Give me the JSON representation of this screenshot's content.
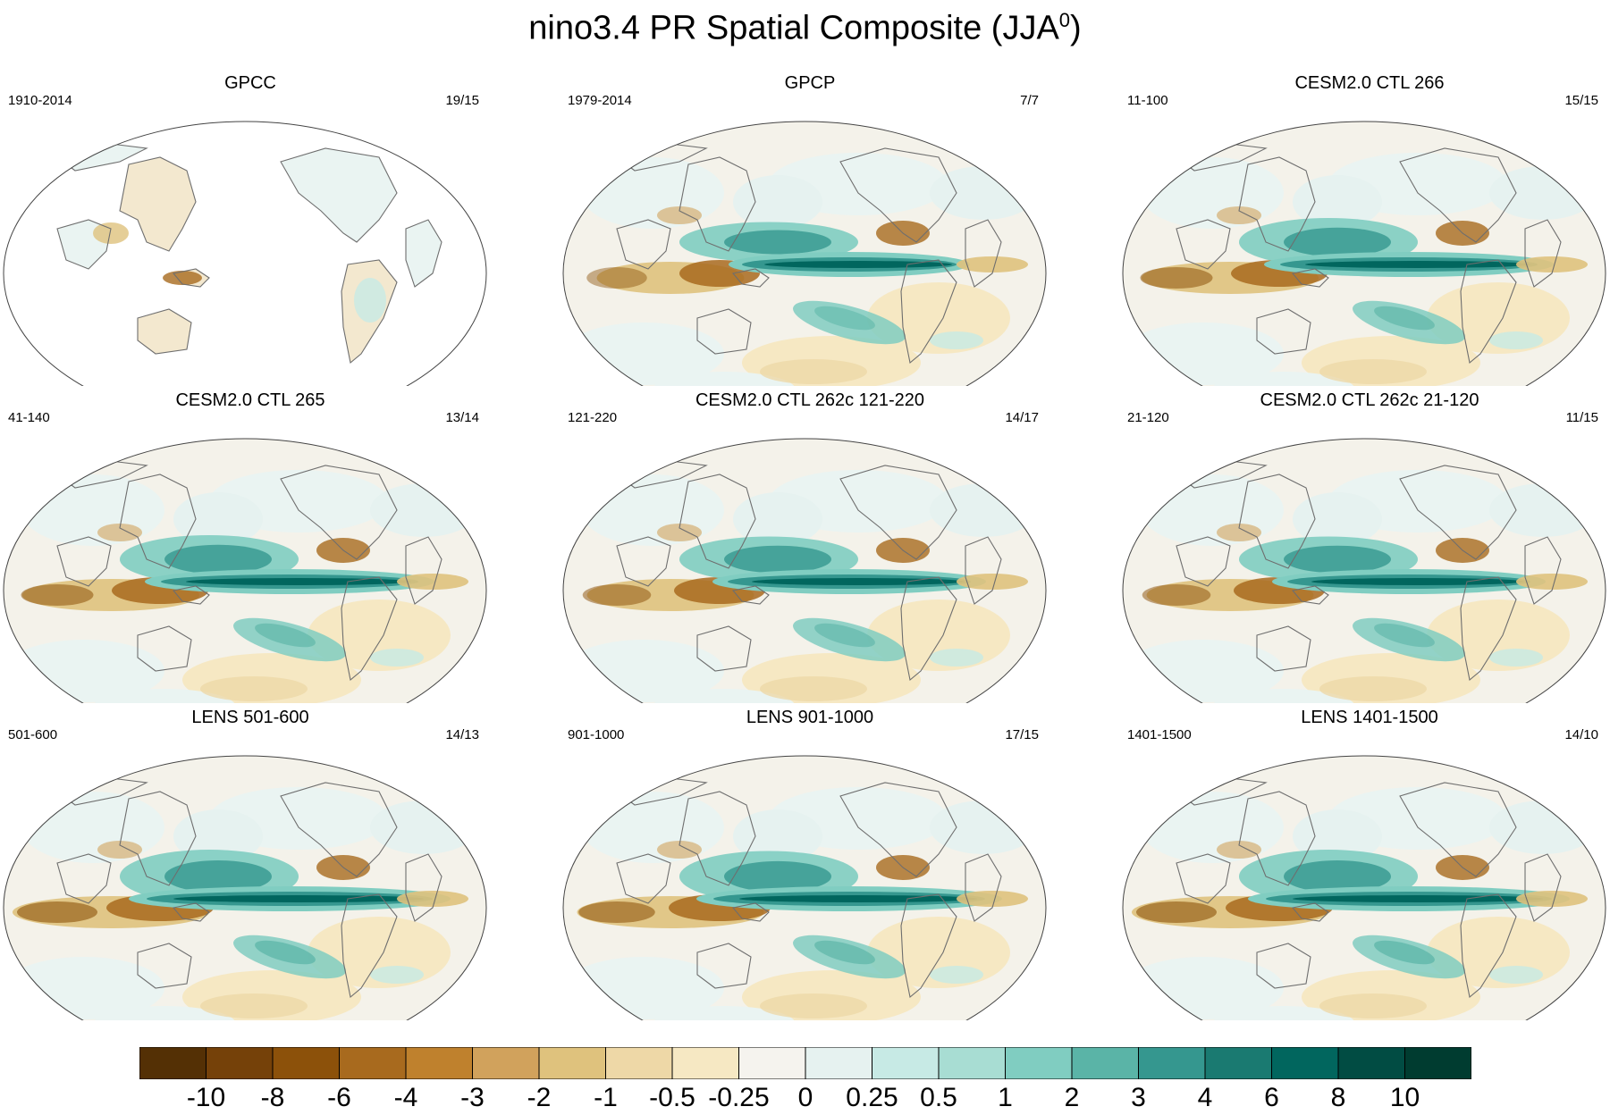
{
  "title_main": "nino3.4 PR Spatial Composite (JJA",
  "title_sup": "0",
  "title_close": ")",
  "panels": [
    {
      "title": "GPCC",
      "left": "1910-2014",
      "right": "19/15",
      "observed_land_only": true,
      "strength": 0.3
    },
    {
      "title": "GPCP",
      "left": "1979-2014",
      "right": "7/7",
      "observed_land_only": false,
      "strength": 0.75
    },
    {
      "title": "CESM2.0 CTL 266",
      "left": "11-100",
      "right": "15/15",
      "observed_land_only": false,
      "strength": 0.9
    },
    {
      "title": "CESM2.0 CTL 265",
      "left": "41-140",
      "right": "13/14",
      "observed_land_only": false,
      "strength": 0.9
    },
    {
      "title": "CESM2.0 CTL 262c 121-220",
      "left": "121-220",
      "right": "14/17",
      "observed_land_only": false,
      "strength": 0.85
    },
    {
      "title": "CESM2.0 CTL 262c 21-120",
      "left": "21-120",
      "right": "11/15",
      "observed_land_only": false,
      "strength": 0.85
    },
    {
      "title": "LENS 501-600",
      "left": "501-600",
      "right": "14/13",
      "observed_land_only": false,
      "strength": 1.0
    },
    {
      "title": "LENS 901-1000",
      "left": "901-1000",
      "right": "17/15",
      "observed_land_only": false,
      "strength": 0.95
    },
    {
      "title": "LENS 1401-1500",
      "left": "1401-1500",
      "right": "14/10",
      "observed_land_only": false,
      "strength": 1.0
    }
  ],
  "colorbar": {
    "labels": [
      "-10",
      "-8",
      "-6",
      "-4",
      "-3",
      "-2",
      "-1",
      "-0.5",
      "-0.25",
      "0",
      "0.25",
      "0.5",
      "1",
      "2",
      "3",
      "4",
      "6",
      "8",
      "10"
    ],
    "colors": [
      "#543005",
      "#754109",
      "#8c510a",
      "#a86a1e",
      "#bf812d",
      "#d1a25c",
      "#dfc27d",
      "#eed8a7",
      "#f6e8c3",
      "#f5f3ee",
      "#e6f2f0",
      "#c7eae5",
      "#a8ddd3",
      "#80cdc1",
      "#5ab4a7",
      "#35978f",
      "#1a7a71",
      "#01665e",
      "#014c43",
      "#003c30"
    ]
  }
}
